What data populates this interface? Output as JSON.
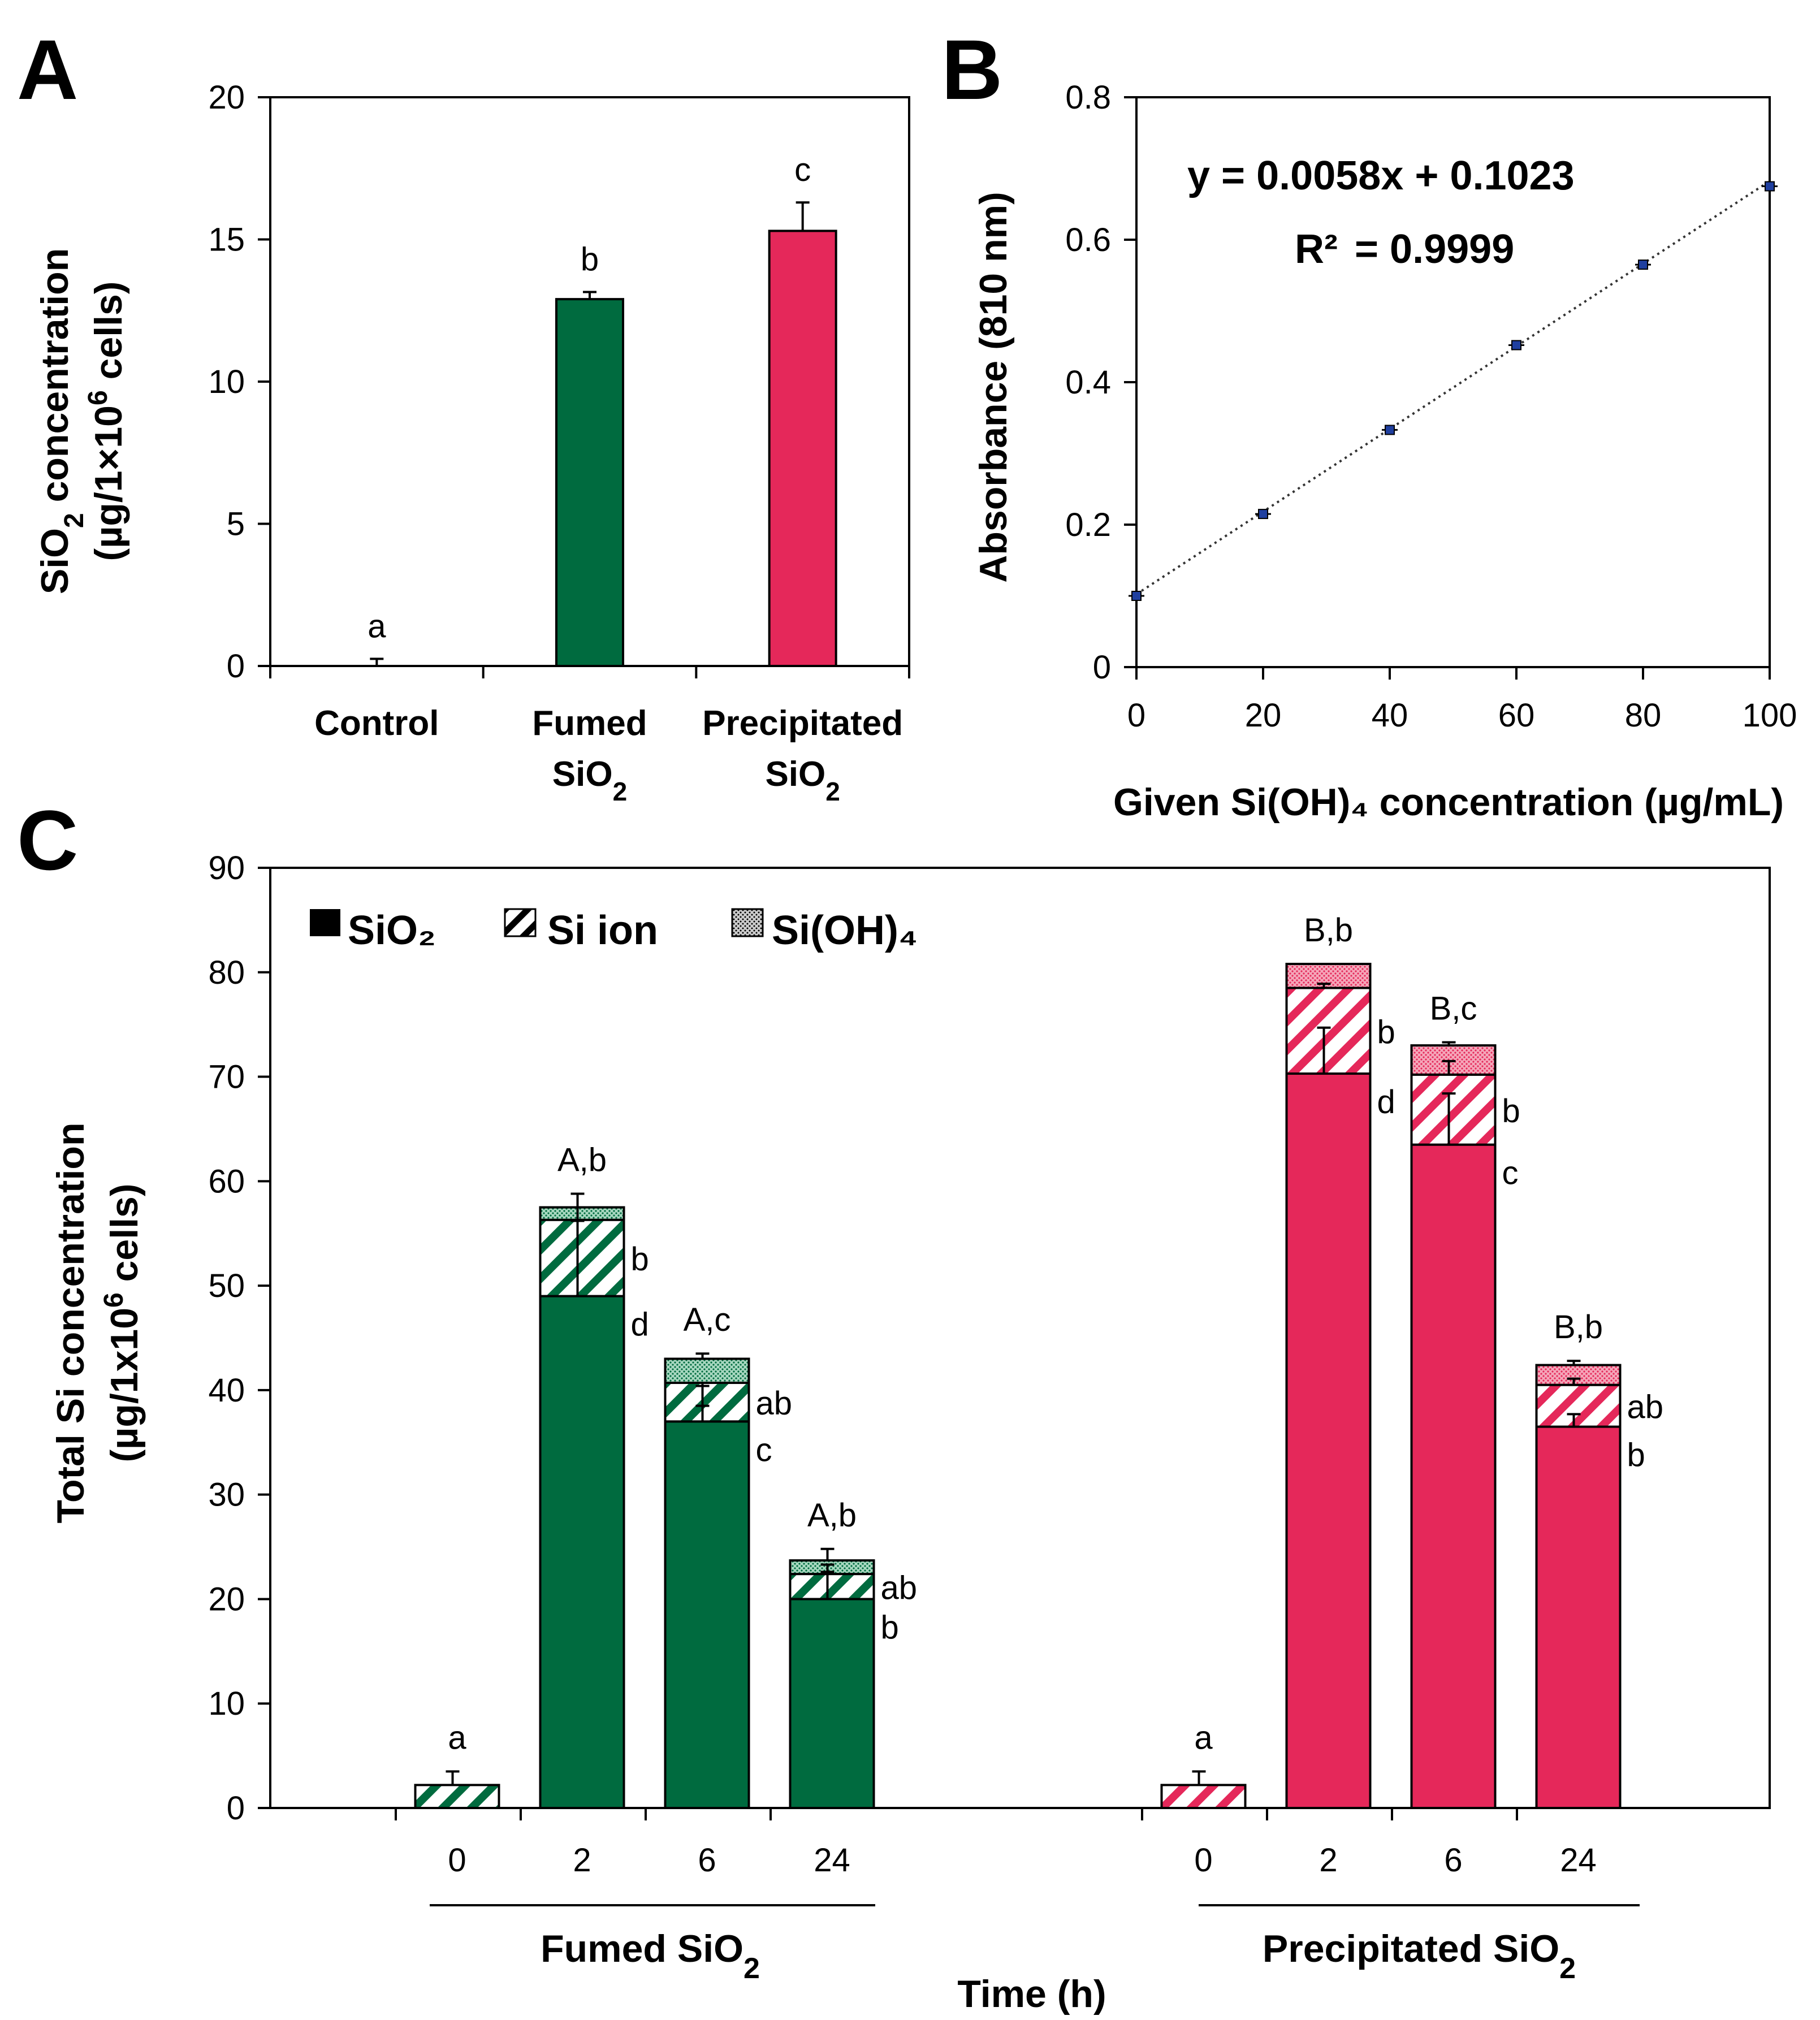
{
  "colors": {
    "fumed": "#006b3f",
    "precipitated": "#e5285a",
    "fumed_dots": "#a8d8c0",
    "precipitated_dots": "#f5a7ba",
    "marker": "#1f3f9f"
  },
  "panel_labels": [
    "A",
    "B",
    "C"
  ],
  "chart_data": [
    {
      "panel": "A",
      "type": "bar",
      "title": "",
      "ylabel_line1": "SiO",
      "ylabel_sub": "2",
      "ylabel_line1_rest": " concentration",
      "ylabel_line2_pre": "(µg/1×10",
      "ylabel_line2_sup": "6",
      "ylabel_line2_post": " cells)",
      "ylim": [
        0,
        20
      ],
      "yticks": [
        "0",
        "5",
        "10",
        "15",
        "20"
      ],
      "categories": [
        {
          "line1": "Control",
          "line2": "",
          "sub": ""
        },
        {
          "line1": "Fumed",
          "line2": "SiO",
          "sub": "2"
        },
        {
          "line1": "Precipitated",
          "line2": "SiO",
          "sub": "2"
        }
      ],
      "values": [
        0,
        12.9,
        15.3
      ],
      "errors": [
        0.25,
        0.25,
        1.0
      ],
      "letters": [
        "a",
        "b",
        "c"
      ]
    },
    {
      "panel": "B",
      "type": "scatter",
      "xlabel": "Given Si(OH)₄ concentration (µg/mL)",
      "ylabel": "Absorbance (810 nm)",
      "xlim": [
        0,
        100
      ],
      "ylim": [
        0,
        0.8
      ],
      "xticks": [
        "0",
        "20",
        "40",
        "60",
        "80",
        "100"
      ],
      "yticks": [
        "0",
        "0.2",
        "0.4",
        "0.6",
        "0.8"
      ],
      "x": [
        0,
        20,
        40,
        60,
        80,
        100
      ],
      "y": [
        0.1,
        0.215,
        0.333,
        0.452,
        0.565,
        0.675
      ],
      "fit": {
        "slope": 0.0058,
        "intercept": 0.1023
      },
      "equation": "y = 0.0058x + 0.1023",
      "r2_label": "R²",
      "r2_value": "= 0.9999"
    },
    {
      "panel": "C",
      "type": "stacked-bar",
      "ylabel_line1": "Total Si concentration",
      "ylabel_line2_pre": "(µg/1x10",
      "ylabel_line2_sup": "6",
      "ylabel_line2_post": " cells)",
      "xlabel": "Time (h)",
      "ylim": [
        0,
        90
      ],
      "yticks": [
        "0",
        "10",
        "20",
        "30",
        "40",
        "50",
        "60",
        "70",
        "80",
        "90"
      ],
      "legend": [
        "SiO₂",
        "Si ion",
        "Si(OH)₄"
      ],
      "groups": [
        {
          "name": "Fumed SiO",
          "sub": "2",
          "color_key": "fumed",
          "times": [
            "0",
            "2",
            "6",
            "24"
          ],
          "series": [
            {
              "name": "SiO₂",
              "values": [
                0,
                49,
                37,
                20
              ]
            },
            {
              "name": "Si ion",
              "values": [
                2.2,
                7.3,
                3.7,
                2.4
              ]
            },
            {
              "name": "Si(OH)₄",
              "values": [
                0,
                1.2,
                2.3,
                1.3
              ]
            }
          ],
          "ion_error_tops": [
            3.5,
            57.5,
            38.5,
            23.3
          ],
          "sio2_error_tops": [
            null,
            56.2,
            40.4,
            22.6
          ],
          "total_error_tops": [
            null,
            58.8,
            43.5,
            24.8
          ],
          "top_labels": [
            "a",
            "A,b",
            "A,c",
            "A,b"
          ],
          "side_labels_upper": [
            "",
            "b",
            "ab",
            "ab"
          ],
          "side_labels_lower": [
            "",
            "d",
            "c",
            "b"
          ]
        },
        {
          "name": "Precipitated SiO",
          "sub": "2",
          "color_key": "precipitated",
          "times": [
            "0",
            "2",
            "6",
            "24"
          ],
          "series": [
            {
              "name": "SiO₂",
              "values": [
                0,
                70.3,
                63.5,
                36.5
              ]
            },
            {
              "name": "Si ion",
              "values": [
                2.2,
                8.2,
                6.7,
                4.0
              ]
            },
            {
              "name": "Si(OH)₄",
              "values": [
                0,
                2.3,
                2.8,
                1.9
              ]
            }
          ],
          "ion_error_tops": [
            3.5,
            78.9,
            71.5,
            41.1
          ],
          "sio2_error_tops": [
            null,
            74.7,
            68.4,
            37.7
          ],
          "total_error_tops": [
            null,
            null,
            73.3,
            42.8
          ],
          "top_labels": [
            "a",
            "B,b",
            "B,c",
            "B,b"
          ],
          "side_labels_upper": [
            "",
            "b",
            "b",
            "ab"
          ],
          "side_labels_lower": [
            "",
            "d",
            "c",
            "b"
          ]
        }
      ]
    }
  ]
}
